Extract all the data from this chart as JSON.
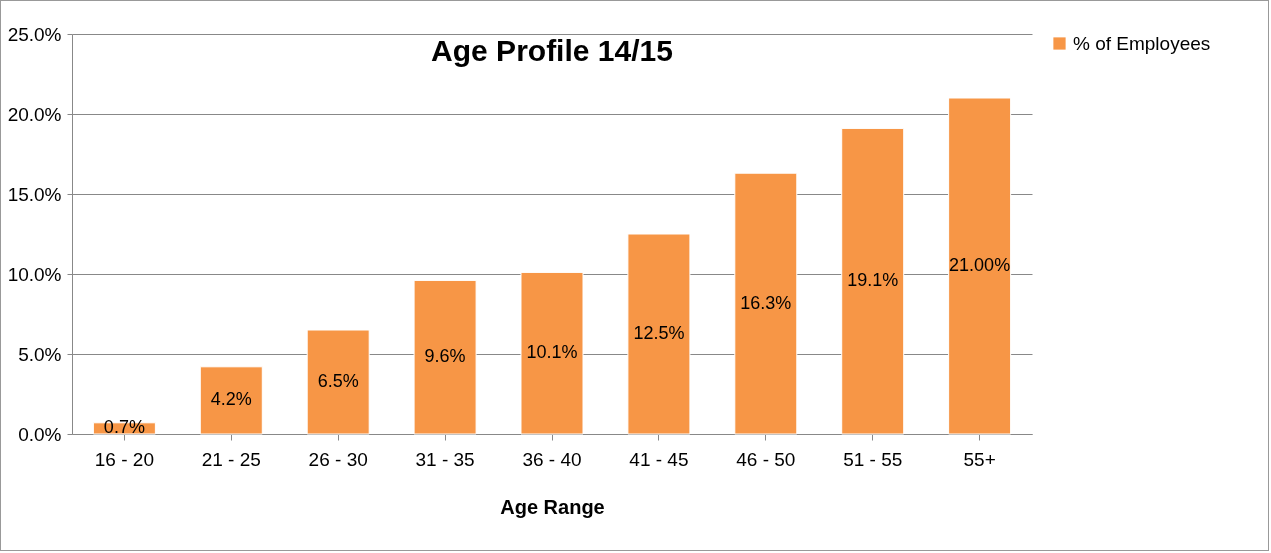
{
  "chart_data": {
    "type": "bar",
    "title": "Age Profile 14/15",
    "xlabel": "Age Range",
    "categories": [
      "16 - 20",
      "21 - 25",
      "26 - 30",
      "31 - 35",
      "36 - 40",
      "41 - 45",
      "46 - 50",
      "51 - 55",
      "55+"
    ],
    "series": [
      {
        "name": "% of Employees",
        "color": "#f79646",
        "values": [
          0.7,
          4.2,
          6.5,
          9.6,
          10.1,
          12.5,
          16.3,
          19.1,
          21.0
        ],
        "value_labels": [
          "0.7%",
          "4.2%",
          "6.5%",
          "9.6%",
          "10.1%",
          "12.5%",
          "16.3%",
          "19.1%",
          "21.00%"
        ]
      }
    ],
    "ylim": [
      0,
      25
    ],
    "yticks": [
      {
        "value": 0,
        "label": "0.0%"
      },
      {
        "value": 5,
        "label": "5.0%"
      },
      {
        "value": 10,
        "label": "10.0%"
      },
      {
        "value": 15,
        "label": "15.0%"
      },
      {
        "value": 20,
        "label": "20.0%"
      },
      {
        "value": 25,
        "label": "25.0%"
      }
    ],
    "grid": "y",
    "legend": "right"
  }
}
